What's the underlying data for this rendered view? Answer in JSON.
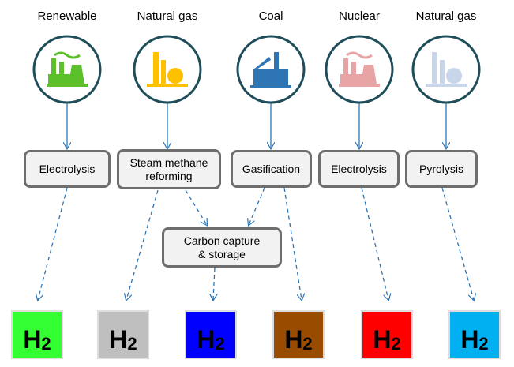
{
  "sources": [
    {
      "label": "Renewable",
      "color": "#5cc02a"
    },
    {
      "label": "Natural gas",
      "color": "#ffc000"
    },
    {
      "label": "Coal",
      "color": "#2e75b6"
    },
    {
      "label": "Nuclear",
      "color": "#e8a4a4"
    },
    {
      "label": "Natural gas",
      "color": "#c9d6ea"
    }
  ],
  "processes": [
    {
      "label": "Electrolysis"
    },
    {
      "label": "Steam methane reforming"
    },
    {
      "label": "Gasification"
    },
    {
      "label": "Electrolysis"
    },
    {
      "label": "Pyrolysis"
    }
  ],
  "storage": {
    "label": "Carbon capture & storage"
  },
  "outputs": [
    {
      "symbol": "H",
      "subscript": "2",
      "color": "#33ff33"
    },
    {
      "symbol": "H",
      "subscript": "2",
      "color": "#bfbfbf"
    },
    {
      "symbol": "H",
      "subscript": "2",
      "color": "#0000ff"
    },
    {
      "symbol": "H",
      "subscript": "2",
      "color": "#994c00"
    },
    {
      "symbol": "H",
      "subscript": "2",
      "color": "#ff0000"
    },
    {
      "symbol": "H",
      "subscript": "2",
      "color": "#00b0f0"
    }
  ]
}
